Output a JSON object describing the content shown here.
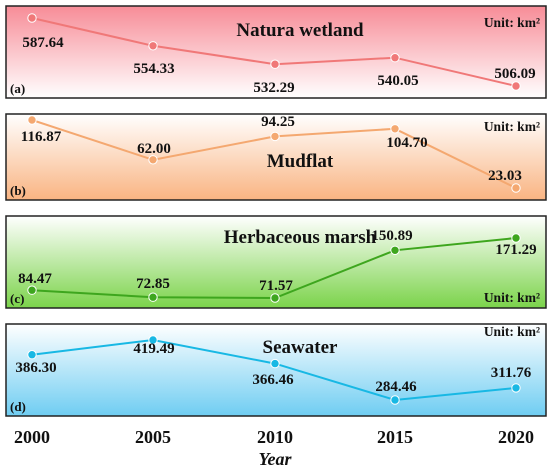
{
  "chart_data": [
    {
      "type": "line",
      "panel": "(a)",
      "title": "Natura wetland",
      "unit": "Unit: km²",
      "x": [
        2000,
        2005,
        2010,
        2015,
        2020
      ],
      "values": [
        587.64,
        554.33,
        532.29,
        540.05,
        506.09
      ],
      "labels": [
        "587.64",
        "554.33",
        "532.29",
        "540.05",
        "506.09"
      ],
      "color": "#f07878",
      "background": [
        "#f78c97",
        "#ffffff"
      ],
      "ylim": [
        490,
        600
      ]
    },
    {
      "type": "line",
      "panel": "(b)",
      "title": "Mudflat",
      "unit": "Unit: km²",
      "x": [
        2000,
        2005,
        2010,
        2015,
        2020
      ],
      "values": [
        116.87,
        62.0,
        94.25,
        104.7,
        23.03
      ],
      "labels": [
        "116.87",
        "62.00",
        "94.25",
        "104.70",
        "23.03"
      ],
      "color": "#f4a870",
      "background": [
        "#ffffff",
        "#f9b482"
      ],
      "ylim": [
        5,
        130
      ]
    },
    {
      "type": "line",
      "panel": "(c)",
      "title": "Herbaceous marsh",
      "unit": "Unit: km²",
      "x": [
        2000,
        2005,
        2010,
        2015,
        2020
      ],
      "values": [
        84.47,
        72.85,
        71.57,
        150.89,
        171.29
      ],
      "labels": [
        "84.47",
        "72.85",
        "71.57",
        "150.89",
        "171.29"
      ],
      "color": "#3ea61e",
      "background": [
        "#ffffff",
        "#7bd34a"
      ],
      "ylim": [
        40,
        180
      ]
    },
    {
      "type": "line",
      "panel": "(d)",
      "title": "Seawater",
      "unit": "Unit: km²",
      "x": [
        2000,
        2005,
        2010,
        2015,
        2020
      ],
      "values": [
        386.3,
        419.49,
        366.46,
        284.46,
        311.76
      ],
      "labels": [
        "386.30",
        "419.49",
        "366.46",
        "284.46",
        "311.76"
      ],
      "color": "#18b8e4",
      "background": [
        "#ffffff",
        "#6fcdf2"
      ],
      "ylim": [
        250,
        440
      ]
    }
  ],
  "x_ticks": [
    "2000",
    "2005",
    "2010",
    "2015",
    "2020"
  ],
  "xlabel": "Year"
}
